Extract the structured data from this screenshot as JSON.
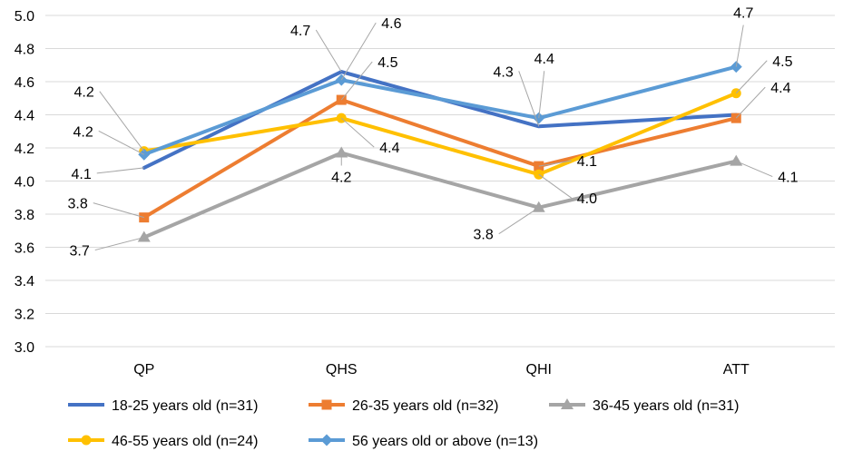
{
  "chart_data": {
    "type": "line",
    "title": "",
    "xlabel": "",
    "ylabel": "",
    "categories": [
      "QP",
      "QHS",
      "QHI",
      "ATT"
    ],
    "ylim": [
      3.0,
      5.0
    ],
    "y_ticks": [
      "3.0",
      "3.2",
      "3.4",
      "3.6",
      "3.8",
      "4.0",
      "4.2",
      "4.4",
      "4.6",
      "4.8",
      "5.0"
    ],
    "grid": true,
    "legend_position": "bottom",
    "series": [
      {
        "name": "18-25 years old (n=31)",
        "color": "#4472C4",
        "marker": "none",
        "values": [
          4.08,
          4.66,
          4.33,
          4.4
        ],
        "labels": [
          "4.1",
          "4.7",
          "4.3",
          ""
        ]
      },
      {
        "name": "26-35 years old (n=32)",
        "color": "#ED7D31",
        "marker": "square",
        "values": [
          3.78,
          4.49,
          4.09,
          4.38
        ],
        "labels": [
          "3.8",
          "4.5",
          "4.1",
          "4.4"
        ]
      },
      {
        "name": "36-45 years old (n=31)",
        "color": "#A5A5A5",
        "marker": "triangle",
        "values": [
          3.66,
          4.17,
          3.84,
          4.12
        ],
        "labels": [
          "3.7",
          "4.2",
          "3.8",
          "4.1"
        ]
      },
      {
        "name": "46-55 years old (n=24)",
        "color": "#FFC000",
        "marker": "circle",
        "values": [
          4.18,
          4.38,
          4.04,
          4.53
        ],
        "labels": [
          "4.2",
          "4.4",
          "4.0",
          "4.5"
        ]
      },
      {
        "name": "56 years old or above (n=13)",
        "color": "#5B9BD5",
        "marker": "diamond",
        "values": [
          4.16,
          4.61,
          4.38,
          4.69
        ],
        "labels": [
          "4.2",
          "4.6",
          "4.4",
          "4.7"
        ]
      }
    ]
  }
}
